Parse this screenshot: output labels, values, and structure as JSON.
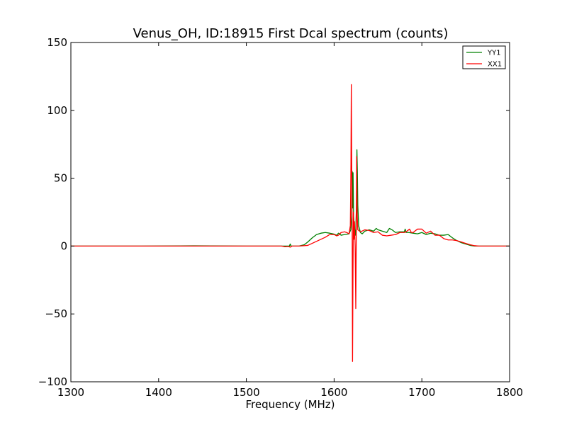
{
  "chart_data": {
    "type": "line",
    "title": "Venus_OH, ID:18915 First Dcal spectrum (counts)",
    "xlabel": "Frequency (MHz)",
    "ylabel": "",
    "xlim": [
      1300,
      1800
    ],
    "ylim": [
      -100,
      150
    ],
    "x_ticks": [
      1300,
      1400,
      1500,
      1600,
      1700,
      1800
    ],
    "y_ticks": [
      -100,
      -50,
      0,
      50,
      100,
      150
    ],
    "x_tick_labels": [
      "1300",
      "1400",
      "1500",
      "1600",
      "1700",
      "1800"
    ],
    "y_tick_labels": [
      "−100",
      "−50",
      "0",
      "50",
      "100",
      "150"
    ],
    "grid": false,
    "legend_position": "top-right",
    "series": [
      {
        "name": "YY1",
        "color": "#008000",
        "points": [
          [
            1300,
            0
          ],
          [
            1380,
            0
          ],
          [
            1440,
            0.2
          ],
          [
            1500,
            0
          ],
          [
            1549,
            0
          ],
          [
            1550,
            1.5
          ],
          [
            1551,
            0
          ],
          [
            1560,
            0
          ],
          [
            1566,
            1
          ],
          [
            1570,
            3
          ],
          [
            1575,
            6
          ],
          [
            1580,
            8.5
          ],
          [
            1585,
            9.5
          ],
          [
            1590,
            10
          ],
          [
            1595,
            9.5
          ],
          [
            1600,
            8.8
          ],
          [
            1603,
            8
          ],
          [
            1605,
            9.5
          ],
          [
            1608,
            8
          ],
          [
            1612,
            8.5
          ],
          [
            1617,
            9
          ],
          [
            1619,
            12
          ],
          [
            1620,
            22
          ],
          [
            1620.6,
            55
          ],
          [
            1621,
            28
          ],
          [
            1621.6,
            54
          ],
          [
            1622.2,
            22
          ],
          [
            1623,
            14
          ],
          [
            1624.5,
            8
          ],
          [
            1625.5,
            30
          ],
          [
            1626,
            71
          ],
          [
            1626.5,
            55
          ],
          [
            1627,
            30
          ],
          [
            1628,
            15
          ],
          [
            1630,
            10
          ],
          [
            1632,
            9
          ],
          [
            1635,
            11
          ],
          [
            1640,
            12
          ],
          [
            1645,
            11
          ],
          [
            1648,
            13
          ],
          [
            1650,
            12
          ],
          [
            1655,
            11
          ],
          [
            1660,
            10
          ],
          [
            1663,
            13
          ],
          [
            1666,
            12
          ],
          [
            1670,
            10
          ],
          [
            1675,
            10.5
          ],
          [
            1680,
            10.5
          ],
          [
            1681,
            12.5
          ],
          [
            1682,
            10
          ],
          [
            1685,
            10
          ],
          [
            1690,
            9.5
          ],
          [
            1695,
            9
          ],
          [
            1700,
            10
          ],
          [
            1705,
            8.5
          ],
          [
            1710,
            9.5
          ],
          [
            1715,
            9
          ],
          [
            1720,
            8
          ],
          [
            1725,
            8
          ],
          [
            1730,
            8.5
          ],
          [
            1735,
            6
          ],
          [
            1740,
            4
          ],
          [
            1745,
            2.5
          ],
          [
            1750,
            1.5
          ],
          [
            1755,
            0.5
          ],
          [
            1760,
            0
          ],
          [
            1800,
            0
          ]
        ]
      },
      {
        "name": "XX1",
        "color": "#ff0000",
        "points": [
          [
            1300,
            0
          ],
          [
            1400,
            0
          ],
          [
            1500,
            0
          ],
          [
            1540,
            0
          ],
          [
            1544,
            -0.5
          ],
          [
            1548,
            -0.3
          ],
          [
            1550,
            -0.8
          ],
          [
            1552,
            0
          ],
          [
            1560,
            0
          ],
          [
            1570,
            0.5
          ],
          [
            1575,
            2
          ],
          [
            1580,
            3.5
          ],
          [
            1585,
            5
          ],
          [
            1590,
            6.5
          ],
          [
            1595,
            8.5
          ],
          [
            1600,
            8.5
          ],
          [
            1603,
            7.5
          ],
          [
            1605,
            8
          ],
          [
            1608,
            10
          ],
          [
            1612,
            10.5
          ],
          [
            1615,
            9.8
          ],
          [
            1617,
            9
          ],
          [
            1618.5,
            15
          ],
          [
            1619.2,
            60
          ],
          [
            1619.6,
            119
          ],
          [
            1620,
            70
          ],
          [
            1620.6,
            12
          ],
          [
            1621,
            -85
          ],
          [
            1621.5,
            -20
          ],
          [
            1622,
            25
          ],
          [
            1622.6,
            5
          ],
          [
            1623.2,
            18
          ],
          [
            1624,
            0
          ],
          [
            1624.7,
            -46
          ],
          [
            1625.2,
            0
          ],
          [
            1625.7,
            66
          ],
          [
            1626.2,
            25
          ],
          [
            1627,
            12
          ],
          [
            1630,
            10.5
          ],
          [
            1635,
            12
          ],
          [
            1640,
            11.5
          ],
          [
            1645,
            10
          ],
          [
            1650,
            10.5
          ],
          [
            1655,
            8
          ],
          [
            1660,
            7.5
          ],
          [
            1665,
            8
          ],
          [
            1670,
            8.5
          ],
          [
            1675,
            10
          ],
          [
            1680,
            10
          ],
          [
            1683,
            11
          ],
          [
            1686,
            12.5
          ],
          [
            1688,
            10
          ],
          [
            1690,
            10
          ],
          [
            1695,
            12.5
          ],
          [
            1700,
            12.5
          ],
          [
            1705,
            9.5
          ],
          [
            1710,
            11
          ],
          [
            1715,
            8
          ],
          [
            1720,
            8
          ],
          [
            1725,
            5.5
          ],
          [
            1730,
            4.5
          ],
          [
            1735,
            4.5
          ],
          [
            1740,
            4
          ],
          [
            1745,
            3
          ],
          [
            1750,
            2
          ],
          [
            1755,
            1
          ],
          [
            1760,
            0.3
          ],
          [
            1765,
            0
          ],
          [
            1800,
            0
          ]
        ]
      }
    ]
  }
}
